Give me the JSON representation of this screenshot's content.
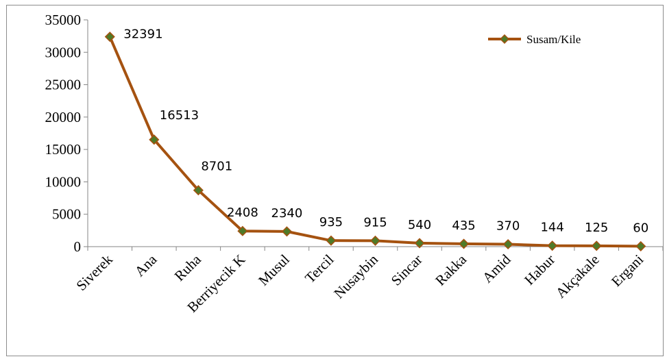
{
  "chart_data": {
    "type": "line",
    "categories": [
      "Siverek",
      "Ana",
      "Ruha",
      "Berriyecik K",
      "Musul",
      "Tercil",
      "Nusaybin",
      "Sincar",
      "Rakka",
      "Amid",
      "Habur",
      "Akçakale",
      "Ergani"
    ],
    "series": [
      {
        "name": "Susam/Kile",
        "values": [
          32391,
          16513,
          8701,
          2408,
          2340,
          935,
          915,
          540,
          435,
          370,
          144,
          125,
          60
        ],
        "data_labels": [
          "32391",
          "16513",
          "8701",
          "2408",
          "2340",
          "935",
          "915",
          "540",
          "435",
          "370",
          "144",
          "125",
          "60"
        ],
        "line_color": "#a55210",
        "marker": "diamond",
        "marker_color": "#4f7a28"
      }
    ],
    "y_ticks": [
      0,
      5000,
      10000,
      15000,
      20000,
      25000,
      30000,
      35000
    ],
    "y_tick_labels": [
      "0",
      "5000",
      "10000",
      "15000",
      "20000",
      "25000",
      "30000",
      "35000"
    ],
    "ylim": [
      0,
      35000
    ],
    "grid": false,
    "legend_position": "top-right"
  }
}
